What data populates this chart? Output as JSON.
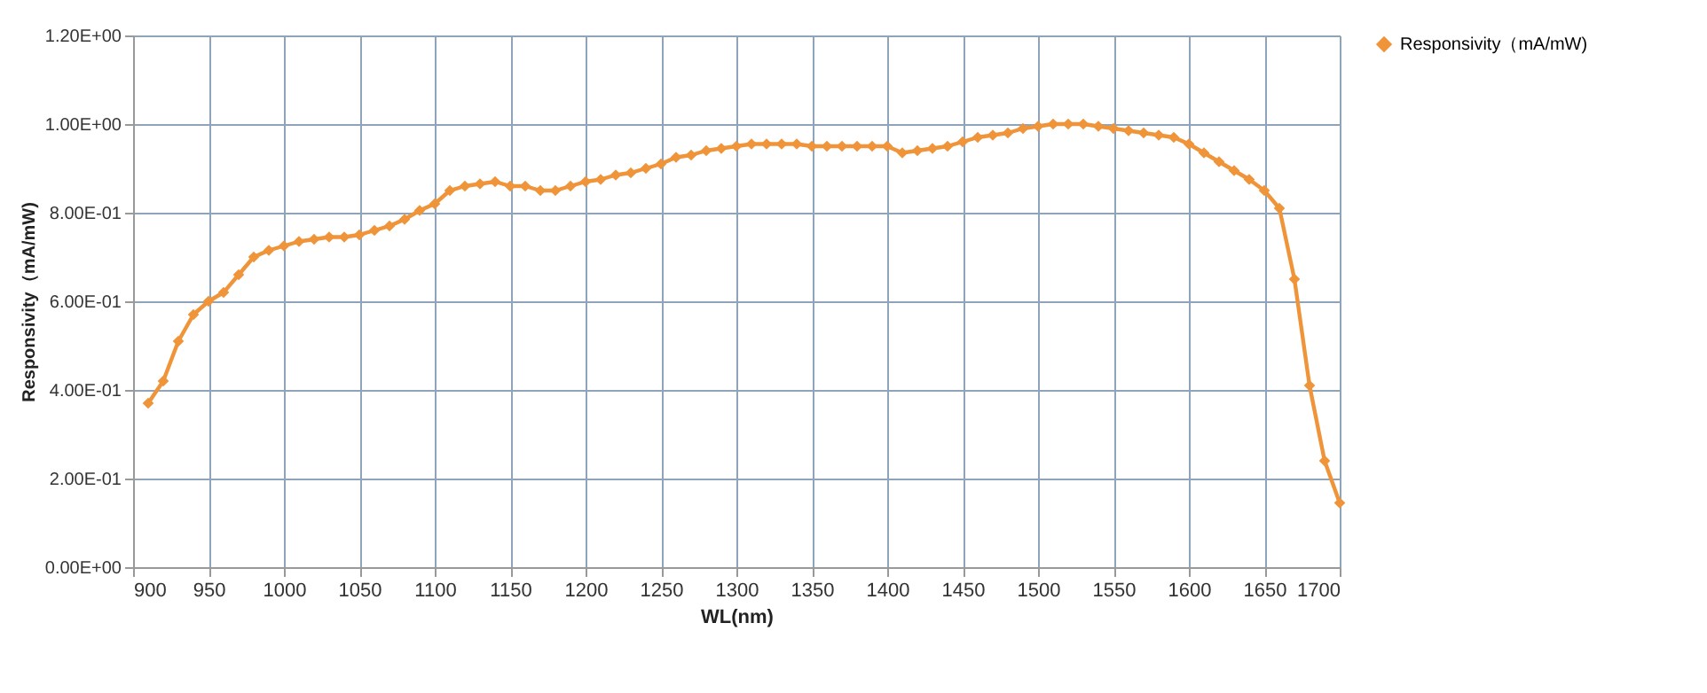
{
  "chart_data": {
    "type": "line",
    "xlabel": "WL(nm)",
    "ylabel": "Responsivity（mA/mW)",
    "x": [
      910,
      920,
      930,
      940,
      950,
      960,
      970,
      980,
      990,
      1000,
      1010,
      1020,
      1030,
      1040,
      1050,
      1060,
      1070,
      1080,
      1090,
      1100,
      1110,
      1120,
      1130,
      1140,
      1150,
      1160,
      1170,
      1180,
      1190,
      1200,
      1210,
      1220,
      1230,
      1240,
      1250,
      1260,
      1270,
      1280,
      1290,
      1300,
      1310,
      1320,
      1330,
      1340,
      1350,
      1360,
      1370,
      1380,
      1390,
      1400,
      1410,
      1420,
      1430,
      1440,
      1450,
      1460,
      1470,
      1480,
      1490,
      1500,
      1510,
      1520,
      1530,
      1540,
      1550,
      1560,
      1570,
      1580,
      1590,
      1600,
      1610,
      1620,
      1630,
      1640,
      1650,
      1660,
      1670,
      1680,
      1690,
      1700
    ],
    "series": [
      {
        "name": "Responsivity（mA/mW)",
        "color": "#f0943a",
        "values": [
          0.37,
          0.42,
          0.51,
          0.57,
          0.6,
          0.62,
          0.66,
          0.7,
          0.715,
          0.725,
          0.735,
          0.74,
          0.745,
          0.745,
          0.75,
          0.76,
          0.77,
          0.785,
          0.805,
          0.82,
          0.85,
          0.86,
          0.865,
          0.87,
          0.86,
          0.86,
          0.85,
          0.85,
          0.86,
          0.87,
          0.875,
          0.885,
          0.89,
          0.9,
          0.91,
          0.925,
          0.93,
          0.94,
          0.945,
          0.95,
          0.955,
          0.955,
          0.955,
          0.955,
          0.95,
          0.95,
          0.95,
          0.95,
          0.95,
          0.95,
          0.935,
          0.94,
          0.945,
          0.95,
          0.96,
          0.97,
          0.975,
          0.98,
          0.99,
          0.995,
          1.0,
          1.0,
          1.0,
          0.995,
          0.99,
          0.985,
          0.98,
          0.975,
          0.97,
          0.955,
          0.935,
          0.915,
          0.895,
          0.875,
          0.85,
          0.81,
          0.65,
          0.41,
          0.24,
          0.145
        ]
      }
    ],
    "xlim": [
      900,
      1700
    ],
    "xticks": [
      900,
      950,
      1000,
      1050,
      1100,
      1150,
      1200,
      1250,
      1300,
      1350,
      1400,
      1450,
      1500,
      1550,
      1600,
      1650,
      1700
    ],
    "ylim": [
      0,
      1.2
    ],
    "yticks": [
      {
        "value": 0,
        "label": "0.00E+00"
      },
      {
        "value": 0.2,
        "label": "2.00E-01"
      },
      {
        "value": 0.4,
        "label": "4.00E-01"
      },
      {
        "value": 0.6,
        "label": "6.00E-01"
      },
      {
        "value": 0.8,
        "label": "8.00E-01"
      },
      {
        "value": 1.0,
        "label": "1.00E+00"
      },
      {
        "value": 1.2,
        "label": "1.20E+00"
      }
    ],
    "grid": true,
    "legend": "right",
    "marker": "diamond",
    "line_style": "solid"
  }
}
